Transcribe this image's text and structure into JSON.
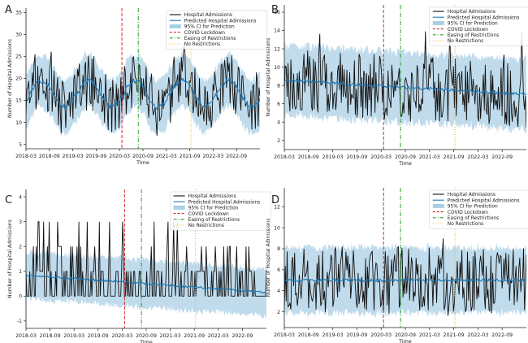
{
  "figure": {
    "background": "#ffffff"
  },
  "colors": {
    "observed": "#111111",
    "predicted": "#1f77b4",
    "ci": "#a9cfe6",
    "lockdown": "#d62728",
    "easing": "#2ca02c",
    "norestrict": "#f0b030",
    "axis": "#222222"
  },
  "chart_data": [
    {
      "panel_label": "A",
      "type": "line",
      "xlabel": "Time",
      "ylabel": "Number of Hospital Admissions",
      "x_ticks": [
        "2018-03",
        "2018-09",
        "2019-03",
        "2019-09",
        "2020-03",
        "2020-09",
        "2021-03",
        "2021-09",
        "2022-03",
        "2022-09"
      ],
      "x_range": [
        "2018-03",
        "2023-03"
      ],
      "ylim": [
        4,
        36
      ],
      "y_ticks": [
        5,
        10,
        15,
        20,
        25,
        30,
        35
      ],
      "legend": [
        "Hospital Admissions",
        "Predicted Hospital Admissions",
        "95% CI for Prediction",
        "COVID Lockdown",
        "Easing of Restrictions",
        "No Restrictions"
      ],
      "events": {
        "COVID Lockdown": 24.6,
        "Easing of Restrictions": 28.8,
        "No Restrictions": 42.3
      },
      "series": {
        "predicted_profile": "seasonal",
        "mean": 16.5,
        "amplitude": 3,
        "ci_half_width": 6,
        "observed_amplitude": 6.5,
        "seed": 11
      }
    },
    {
      "panel_label": "B",
      "type": "line",
      "xlabel": "Time",
      "ylabel": "Number of Hospital Admissions",
      "x_ticks": [
        "2018-03",
        "2018-09",
        "2019-03",
        "2019-09",
        "2020-03",
        "2020-09",
        "2021-03",
        "2021-09",
        "2022-03",
        "2022-09"
      ],
      "x_range": [
        "2018-03",
        "2023-03"
      ],
      "ylim": [
        1,
        16.8
      ],
      "y_ticks": [
        2,
        4,
        6,
        8,
        10,
        12,
        14,
        16
      ],
      "legend": [
        "Hospital Admissions",
        "Predicted Hospital Admissions",
        "95% CI for Prediction",
        "COVID Lockdown",
        "Easing of Restrictions",
        "No Restrictions"
      ],
      "events": {
        "COVID Lockdown": 24.6,
        "Easing of Restrictions": 28.8,
        "No Restrictions": 42.3
      },
      "series": {
        "predicted_profile": "decline",
        "start": 8.6,
        "end": 7.0,
        "ci_half_width": 3.8,
        "observed_amplitude": 3.6,
        "seed": 23
      }
    },
    {
      "panel_label": "C",
      "type": "line",
      "xlabel": "Time",
      "ylabel": "Number of Hospital Admissions",
      "x_ticks": [
        "2018-03",
        "2018-09",
        "2019-03",
        "2019-09",
        "2020-03",
        "2020-09",
        "2021-03",
        "2021-09",
        "2022-03",
        "2022-09"
      ],
      "x_range": [
        "2018-03",
        "2023-03"
      ],
      "ylim": [
        -1.3,
        4.3
      ],
      "y_ticks": [
        -1,
        0,
        1,
        2,
        3,
        4
      ],
      "legend": [
        "Hospital Admissions",
        "Predicted Hospital Admissions",
        "95% CI for Prediction",
        "COVID Lockdown",
        "Easing of Restrictions",
        "No Restrictions"
      ],
      "events": {
        "COVID Lockdown": 24.6,
        "Easing of Restrictions": 28.8,
        "No Restrictions": 42.3
      },
      "series": {
        "predicted_profile": "count",
        "start": 0.85,
        "end": 0.15,
        "ci_half_width": 0.95,
        "seed": 37
      }
    },
    {
      "panel_label": "D",
      "type": "line",
      "xlabel": "Time",
      "ylabel": "Number of Hospital Admissions",
      "x_ticks": [
        "2018-03",
        "2018-09",
        "2019-03",
        "2019-09",
        "2020-03",
        "2020-09",
        "2021-03",
        "2021-09",
        "2022-03",
        "2022-09"
      ],
      "x_range": [
        "2018-03",
        "2023-03"
      ],
      "ylim": [
        0.5,
        13.8
      ],
      "y_ticks": [
        2,
        4,
        6,
        8,
        10,
        12
      ],
      "legend": [
        "Hospital Admissions",
        "Predicted Hospital Admissions",
        "95% CI for Prediction",
        "COVID Lockdown",
        "Easing of Restrictions",
        "No Restrictions"
      ],
      "events": {
        "COVID Lockdown": 24.6,
        "Easing of Restrictions": 28.8,
        "No Restrictions": 42.3
      },
      "series": {
        "predicted_profile": "flat",
        "start": 5.0,
        "end": 5.0,
        "ci_half_width": 3.1,
        "observed_amplitude": 3.2,
        "seed": 53
      }
    }
  ]
}
